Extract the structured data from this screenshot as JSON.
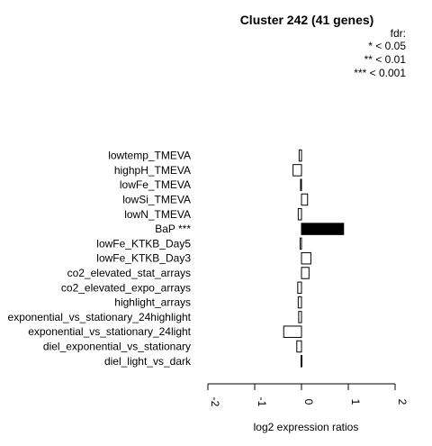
{
  "chart_data": {
    "type": "bar",
    "orientation": "horizontal",
    "title": "Cluster 242 (41 genes)",
    "legend": {
      "heading": "fdr:",
      "entries": [
        "* < 0.05",
        "** < 0.01",
        "*** < 0.001"
      ]
    },
    "xlabel": "log2 expression ratios",
    "xlim": [
      -2,
      2
    ],
    "xticks": [
      "-2",
      "-1",
      "0",
      "1",
      "2"
    ],
    "categories": [
      "lowtemp_TMEVA",
      "highpH_TMEVA",
      "lowFe_TMEVA",
      "lowSi_TMEVA",
      "lowN_TMEVA",
      "BaP ***",
      "lowFe_KTKB_Day5",
      "lowFe_KTKB_Day3",
      "co2_elevated_stat_arrays",
      "co2_elevated_expo_arrays",
      "highlight_arrays",
      "exponential_vs_stationary_24highlight",
      "exponential_vs_stationary_24light",
      "diel_exponential_vs_stationary",
      "diel_light_vs_dark"
    ],
    "values": [
      -0.05,
      -0.18,
      -0.02,
      0.13,
      -0.07,
      0.9,
      -0.03,
      0.2,
      0.16,
      -0.08,
      -0.07,
      -0.06,
      -0.38,
      -0.1,
      -0.01
    ],
    "highlight": [
      false,
      false,
      false,
      false,
      false,
      true,
      false,
      false,
      false,
      false,
      false,
      false,
      false,
      false,
      false
    ],
    "colors": {
      "bar": "#ffffff",
      "highlight_bar": "#000000",
      "stroke": "#000000"
    }
  }
}
